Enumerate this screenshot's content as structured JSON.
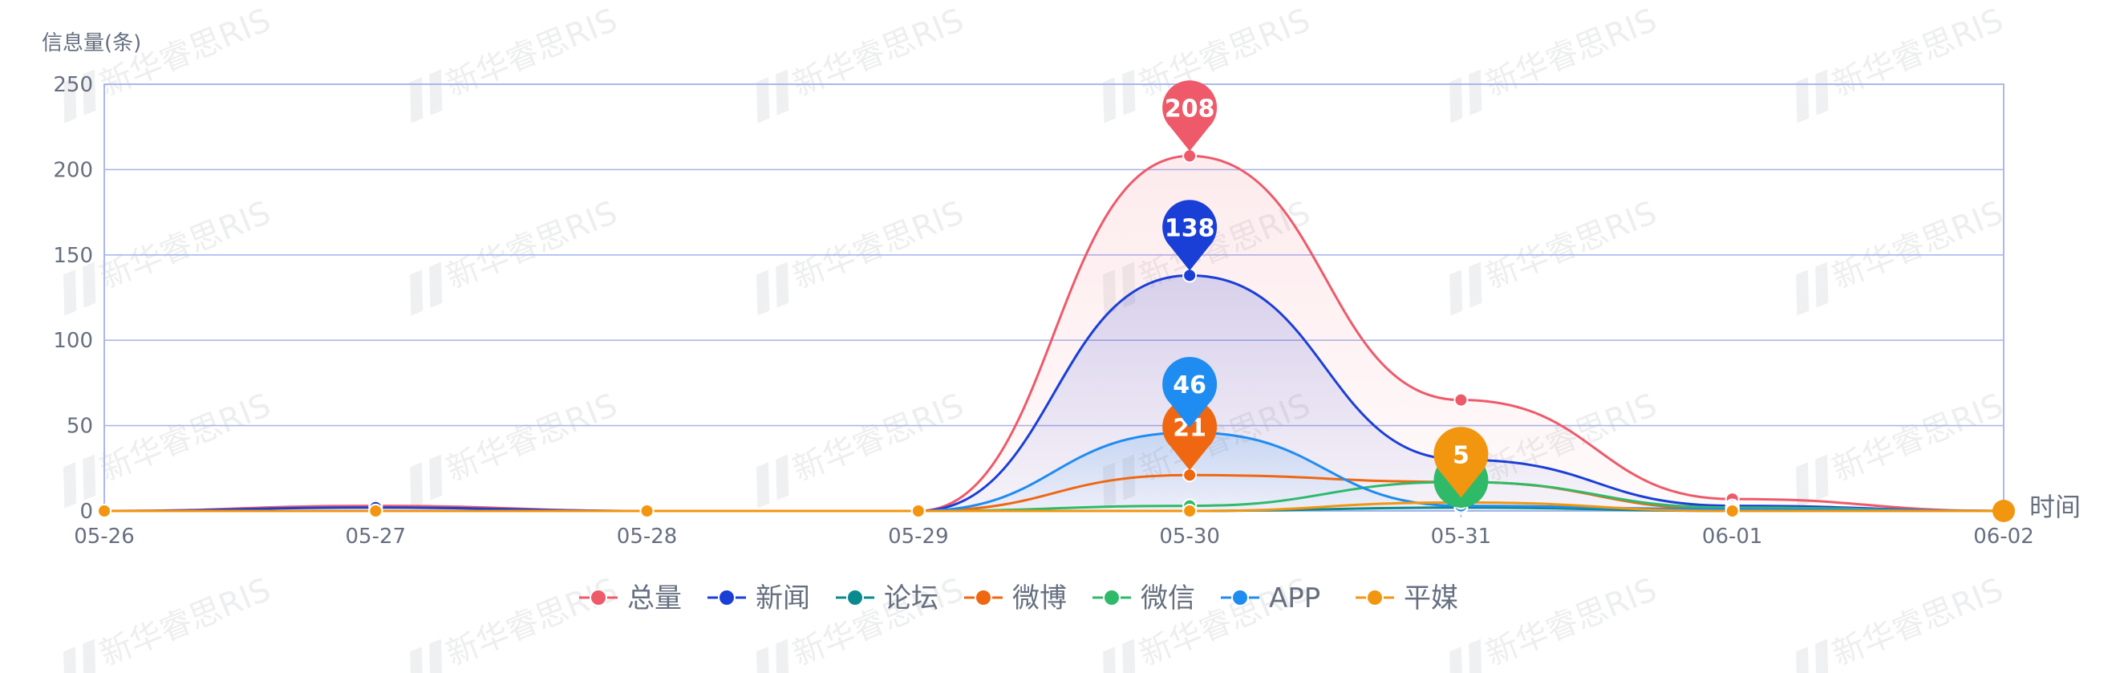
{
  "chart_data": {
    "type": "line",
    "ylabel": "信息量(条)",
    "xlabel": "时间",
    "categories": [
      "05-26",
      "05-27",
      "05-28",
      "05-29",
      "05-30",
      "05-31",
      "06-01",
      "06-02"
    ],
    "yticks": [
      0,
      50,
      100,
      150,
      200,
      250
    ],
    "ylim": [
      0,
      250
    ],
    "grid": true,
    "legend_position": "bottom",
    "series": [
      {
        "name": "总量",
        "color": "#ee5a6a",
        "values": [
          0,
          3,
          0,
          0,
          208,
          65,
          7,
          0
        ],
        "area": true,
        "pin_index": 4
      },
      {
        "name": "新闻",
        "color": "#1a3fd6",
        "values": [
          0,
          2,
          0,
          0,
          138,
          30,
          3,
          0
        ],
        "area": true,
        "pin_index": 4
      },
      {
        "name": "论坛",
        "color": "#0a8a8f",
        "values": [
          0,
          0,
          0,
          0,
          0,
          2,
          0,
          0
        ],
        "area": false
      },
      {
        "name": "微博",
        "color": "#ef6711",
        "values": [
          0,
          0,
          0,
          0,
          21,
          17,
          1,
          0
        ],
        "area": false,
        "pin_index": 4
      },
      {
        "name": "微信",
        "color": "#2fba6a",
        "values": [
          0,
          0,
          0,
          0,
          3,
          17,
          2,
          0
        ],
        "area": false,
        "pin_index": 5,
        "pin_style": "bubble"
      },
      {
        "name": "APP",
        "color": "#1e8cf0",
        "values": [
          0,
          0,
          0,
          0,
          46,
          3,
          1,
          0
        ],
        "area": true,
        "pin_index": 4
      },
      {
        "name": "平媒",
        "color": "#f2960f",
        "values": [
          0,
          0,
          0,
          0,
          0,
          5,
          0,
          0
        ],
        "area": false,
        "pin_index": 5
      }
    ],
    "watermark": "新华睿思RIS"
  }
}
